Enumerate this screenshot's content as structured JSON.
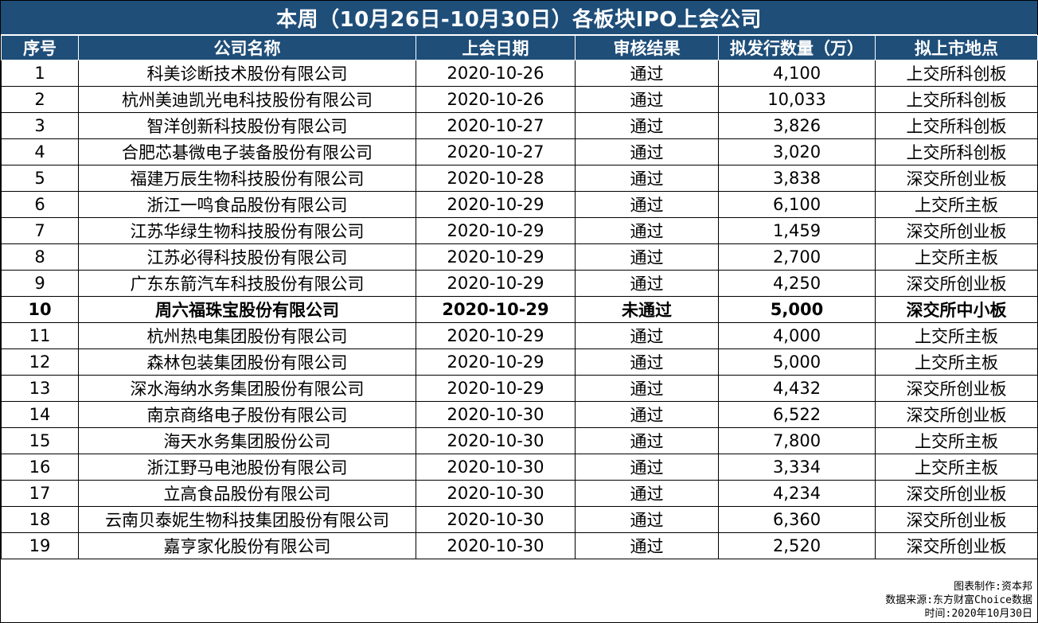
{
  "title": "本周（10月26日-10月30日）各板块IPO上会公司",
  "headers": [
    "序号",
    "公司名称",
    "上会日期",
    "审核结果",
    "拟发行数量（万）",
    "拟上市地点"
  ],
  "rows": [
    {
      "no": "1",
      "name": "科美诊断技术股份有限公司",
      "date": "2020-10-26",
      "result": "通过",
      "shares": "4,100",
      "venue": "上交所科创板",
      "bold": false
    },
    {
      "no": "2",
      "name": "杭州美迪凯光电科技股份有限公司",
      "date": "2020-10-26",
      "result": "通过",
      "shares": "10,033",
      "venue": "上交所科创板",
      "bold": false
    },
    {
      "no": "3",
      "name": "智洋创新科技股份有限公司",
      "date": "2020-10-27",
      "result": "通过",
      "shares": "3,826",
      "venue": "上交所科创板",
      "bold": false
    },
    {
      "no": "4",
      "name": "合肥芯碁微电子装备股份有限公司",
      "date": "2020-10-27",
      "result": "通过",
      "shares": "3,020",
      "venue": "上交所科创板",
      "bold": false
    },
    {
      "no": "5",
      "name": "福建万辰生物科技股份有限公司",
      "date": "2020-10-28",
      "result": "通过",
      "shares": "3,838",
      "venue": "深交所创业板",
      "bold": false
    },
    {
      "no": "6",
      "name": "浙江一鸣食品股份有限公司",
      "date": "2020-10-29",
      "result": "通过",
      "shares": "6,100",
      "venue": "上交所主板",
      "bold": false
    },
    {
      "no": "7",
      "name": "江苏华绿生物科技股份有限公司",
      "date": "2020-10-29",
      "result": "通过",
      "shares": "1,459",
      "venue": "深交所创业板",
      "bold": false
    },
    {
      "no": "8",
      "name": "江苏必得科技股份有限公司",
      "date": "2020-10-29",
      "result": "通过",
      "shares": "2,700",
      "venue": "上交所主板",
      "bold": false
    },
    {
      "no": "9",
      "name": "广东东箭汽车科技股份有限公司",
      "date": "2020-10-29",
      "result": "通过",
      "shares": "4,250",
      "venue": "深交所创业板",
      "bold": false
    },
    {
      "no": "10",
      "name": "周六福珠宝股份有限公司",
      "date": "2020-10-29",
      "result": "未通过",
      "shares": "5,000",
      "venue": "深交所中小板",
      "bold": true
    },
    {
      "no": "11",
      "name": "杭州热电集团股份有限公司",
      "date": "2020-10-29",
      "result": "通过",
      "shares": "4,000",
      "venue": "上交所主板",
      "bold": false
    },
    {
      "no": "12",
      "name": "森林包装集团股份有限公司",
      "date": "2020-10-29",
      "result": "通过",
      "shares": "5,000",
      "venue": "上交所主板",
      "bold": false
    },
    {
      "no": "13",
      "name": "深水海纳水务集团股份有限公司",
      "date": "2020-10-29",
      "result": "通过",
      "shares": "4,432",
      "venue": "深交所创业板",
      "bold": false
    },
    {
      "no": "14",
      "name": "南京商络电子股份有限公司",
      "date": "2020-10-30",
      "result": "通过",
      "shares": "6,522",
      "venue": "深交所创业板",
      "bold": false
    },
    {
      "no": "15",
      "name": "海天水务集团股份公司",
      "date": "2020-10-30",
      "result": "通过",
      "shares": "7,800",
      "venue": "上交所主板",
      "bold": false
    },
    {
      "no": "16",
      "name": "浙江野马电池股份有限公司",
      "date": "2020-10-30",
      "result": "通过",
      "shares": "3,334",
      "venue": "上交所主板",
      "bold": false
    },
    {
      "no": "17",
      "name": "立高食品股份有限公司",
      "date": "2020-10-30",
      "result": "通过",
      "shares": "4,234",
      "venue": "深交所创业板",
      "bold": false
    },
    {
      "no": "18",
      "name": "云南贝泰妮生物科技集团股份有限公司",
      "date": "2020-10-30",
      "result": "通过",
      "shares": "6,360",
      "venue": "深交所创业板",
      "bold": false
    },
    {
      "no": "19",
      "name": "嘉亨家化股份有限公司",
      "date": "2020-10-30",
      "result": "通过",
      "shares": "2,520",
      "venue": "深交所创业板",
      "bold": false
    }
  ],
  "footer": {
    "line1": "图表制作:资本邦",
    "line2": "数据来源:东方财富Choice数据",
    "line3": "时间:2020年10月30日"
  },
  "colors": {
    "header_bg": "#1f4e79",
    "header_text": "#ffffff"
  }
}
